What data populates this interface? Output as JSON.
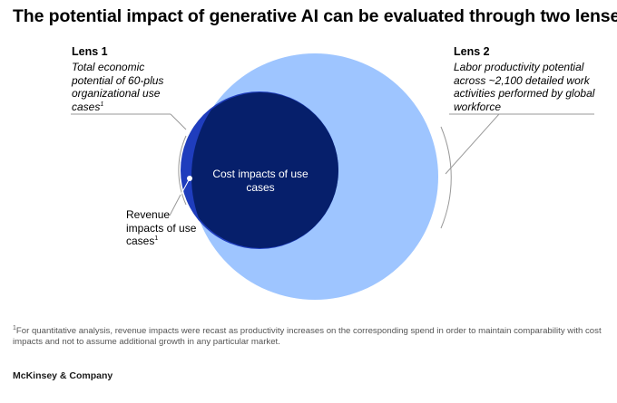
{
  "title": "The potential impact of generative AI can be evaluated through two lenses.",
  "lens1": {
    "heading": "Lens 1",
    "description": "Total economic potential of 60-plus organizational use cases",
    "footnote_mark": "1"
  },
  "lens2": {
    "heading": "Lens 2",
    "description": "Labor productivity potential across ~2,100 detailed work activities performed by global workforce"
  },
  "circles": {
    "cost_label": "Cost impacts of use cases",
    "revenue_label": "Revenue impacts of use cases",
    "revenue_footnote_mark": "1"
  },
  "colors": {
    "large_circle": "#9ec5ff",
    "revenue_sliver": "#1f3dbd",
    "cost_circle": "#061f6b",
    "bracket_line": "#999999"
  },
  "footnote": {
    "mark": "1",
    "text": "For quantitative analysis, revenue impacts were recast as productivity increases on the corresponding spend in order to maintain comparability with cost impacts and not to assume additional growth in any particular market."
  },
  "brand": "McKinsey & Company"
}
